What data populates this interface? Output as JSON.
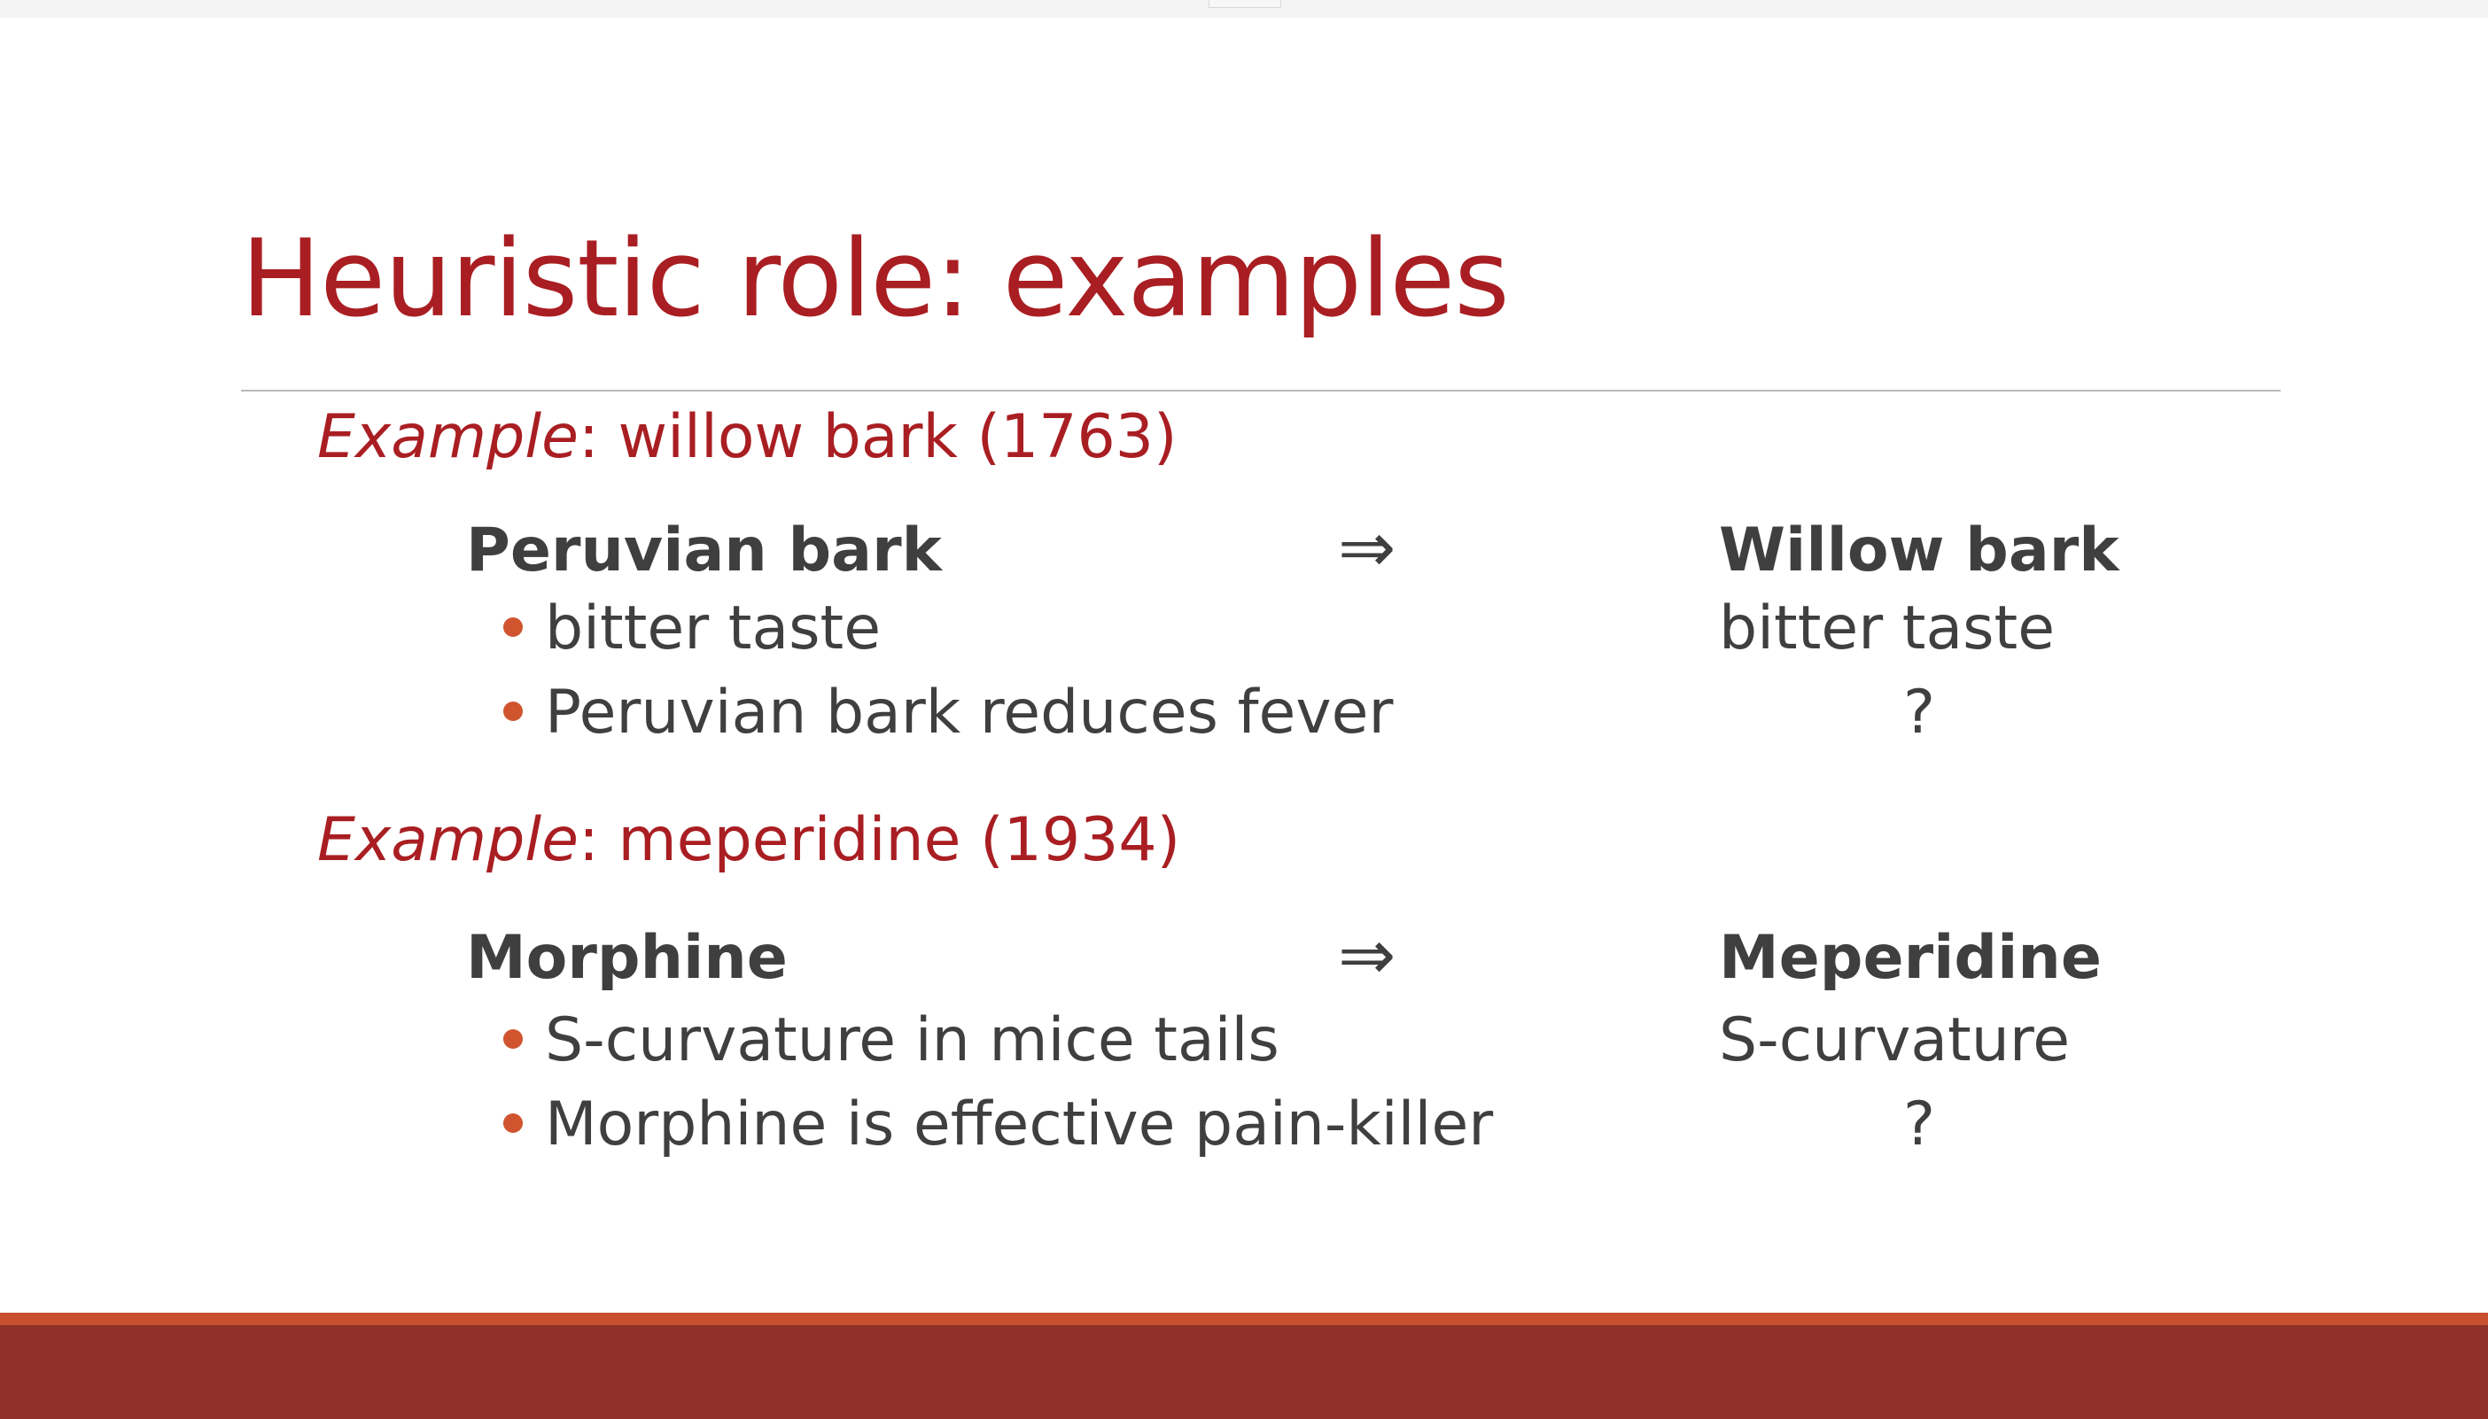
{
  "slide": {
    "title": "Heuristic role: examples",
    "examples": [
      {
        "keyword": "Example",
        "rest": ": willow bark (1763)",
        "source": "Peruvian bark",
        "arrow": "⇒",
        "target": "Willow bark",
        "bullets": [
          "bitter taste",
          "Peruvian bark reduces fever"
        ],
        "target_lines": [
          "bitter taste",
          "?"
        ]
      },
      {
        "keyword": "Example",
        "rest": ": meperidine (1934)",
        "source": "Morphine",
        "arrow": "⇒",
        "target": "Meperidine",
        "bullets": [
          "S-curvature in mice tails",
          "Morphine is effective pain-killer"
        ],
        "target_lines": [
          "S-curvature",
          "?"
        ]
      }
    ]
  },
  "colors": {
    "title": "#a91e22",
    "body_text": "#3f3f3f",
    "bullet": "#d0552f",
    "footer_accent": "#c9502f",
    "footer_band": "#8f3128"
  }
}
